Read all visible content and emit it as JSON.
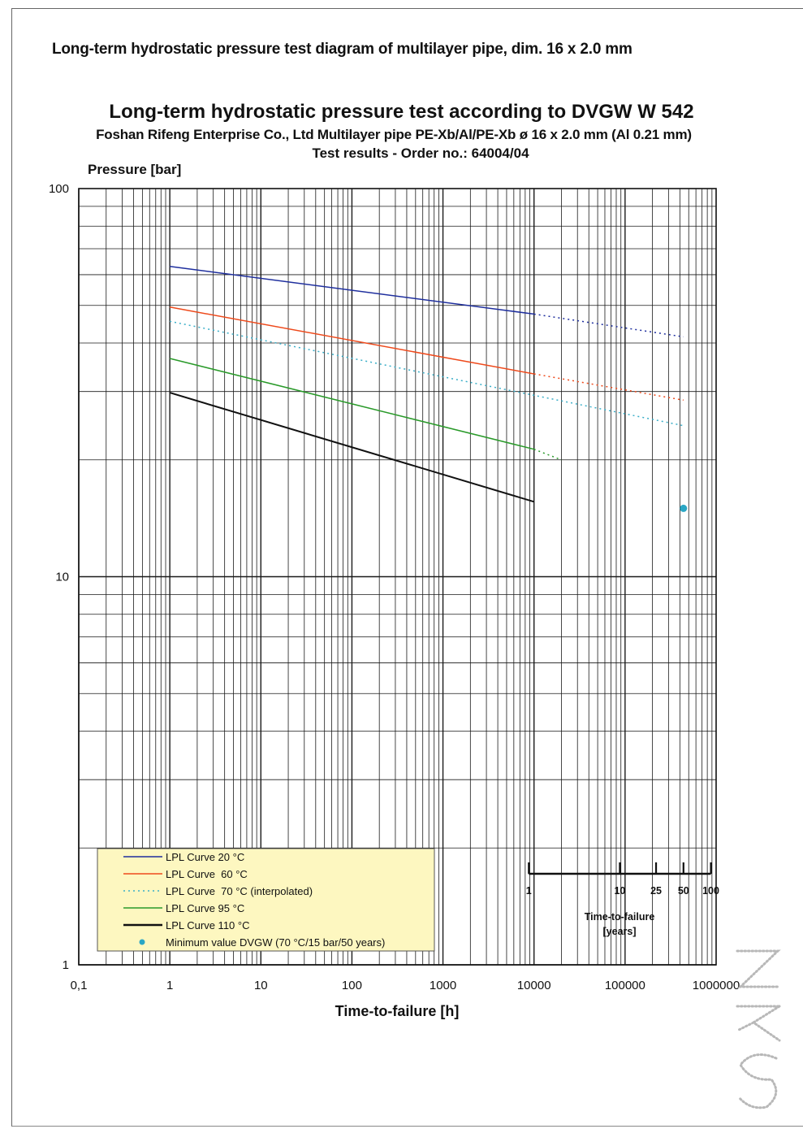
{
  "document": {
    "title": "Long-term hydrostatic pressure test diagram of multilayer pipe, dim. 16 x 2.0 mm"
  },
  "chart_data": {
    "type": "line",
    "title": "Long-term hydrostatic pressure test according to DVGW W 542",
    "subtitle": "Foshan Rifeng Enterprise Co., Ltd Multilayer pipe PE-Xb/Al/PE-Xb ø 16 x 2.0 mm (Al 0.21 mm)",
    "subtitle2": "Test results - Order no.: 64004/04",
    "ylabel": "Pressure [bar]",
    "xlabel": "Time-to-failure [h]",
    "x_scale": "log",
    "y_scale": "log",
    "xlim": [
      0.1,
      1000000
    ],
    "ylim": [
      1,
      100
    ],
    "grid": true,
    "x_ticks": [
      {
        "value": 0.1,
        "label": "0,1"
      },
      {
        "value": 1,
        "label": "1"
      },
      {
        "value": 10,
        "label": "10"
      },
      {
        "value": 100,
        "label": "100"
      },
      {
        "value": 1000,
        "label": "1000"
      },
      {
        "value": 10000,
        "label": "10000"
      },
      {
        "value": 100000,
        "label": "100000"
      },
      {
        "value": 1000000,
        "label": "1000000"
      }
    ],
    "y_ticks": [
      {
        "value": 1,
        "label": "1"
      },
      {
        "value": 10,
        "label": "10"
      },
      {
        "value": 100,
        "label": "100"
      }
    ],
    "series": [
      {
        "name": "LPL Curve 20 °C",
        "color": "#1f2f9e",
        "style": "solid",
        "solid": [
          [
            1,
            63
          ],
          [
            10000,
            47.5
          ]
        ],
        "extrapolated": [
          [
            10000,
            47.5
          ],
          [
            438000,
            41.5
          ]
        ]
      },
      {
        "name": "LPL Curve  60 °C",
        "color": "#ee4a1c",
        "style": "solid",
        "solid": [
          [
            1,
            49.5
          ],
          [
            10000,
            33.3
          ]
        ],
        "extrapolated": [
          [
            10000,
            33.3
          ],
          [
            438000,
            28.5
          ]
        ]
      },
      {
        "name": "LPL Curve  70 °C (interpolated)",
        "color": "#3aaec8",
        "style": "dotted",
        "solid": [],
        "extrapolated": [
          [
            1,
            45.5
          ],
          [
            438000,
            24.5
          ]
        ]
      },
      {
        "name": "LPL Curve 95 °C",
        "color": "#2a9a2a",
        "style": "solid",
        "solid": [
          [
            1,
            36.5
          ],
          [
            10000,
            21.3
          ]
        ],
        "extrapolated": [
          [
            10000,
            21.3
          ],
          [
            20000,
            20
          ]
        ]
      },
      {
        "name": "LPL Curve 110 °C",
        "color": "#111111",
        "style": "solid",
        "solid": [
          [
            1,
            29.8
          ],
          [
            10000,
            15.6
          ]
        ],
        "extrapolated": []
      }
    ],
    "points": [
      {
        "name": "Minimum value DVGW (70 °C/15 bar/50 years)",
        "x": 438000,
        "y": 15,
        "color": "#2aa6c4"
      }
    ],
    "legend": {
      "placement": "bottom-left",
      "background": "#fdf7c0"
    },
    "years_scale": {
      "title": "Time-to-failure",
      "unit": "[years]",
      "ticks": [
        {
          "years": 1,
          "label": "1"
        },
        {
          "years": 10,
          "label": "10"
        },
        {
          "years": 25,
          "label": "25"
        },
        {
          "years": 50,
          "label": "50"
        },
        {
          "years": 100,
          "label": "100"
        }
      ]
    }
  }
}
